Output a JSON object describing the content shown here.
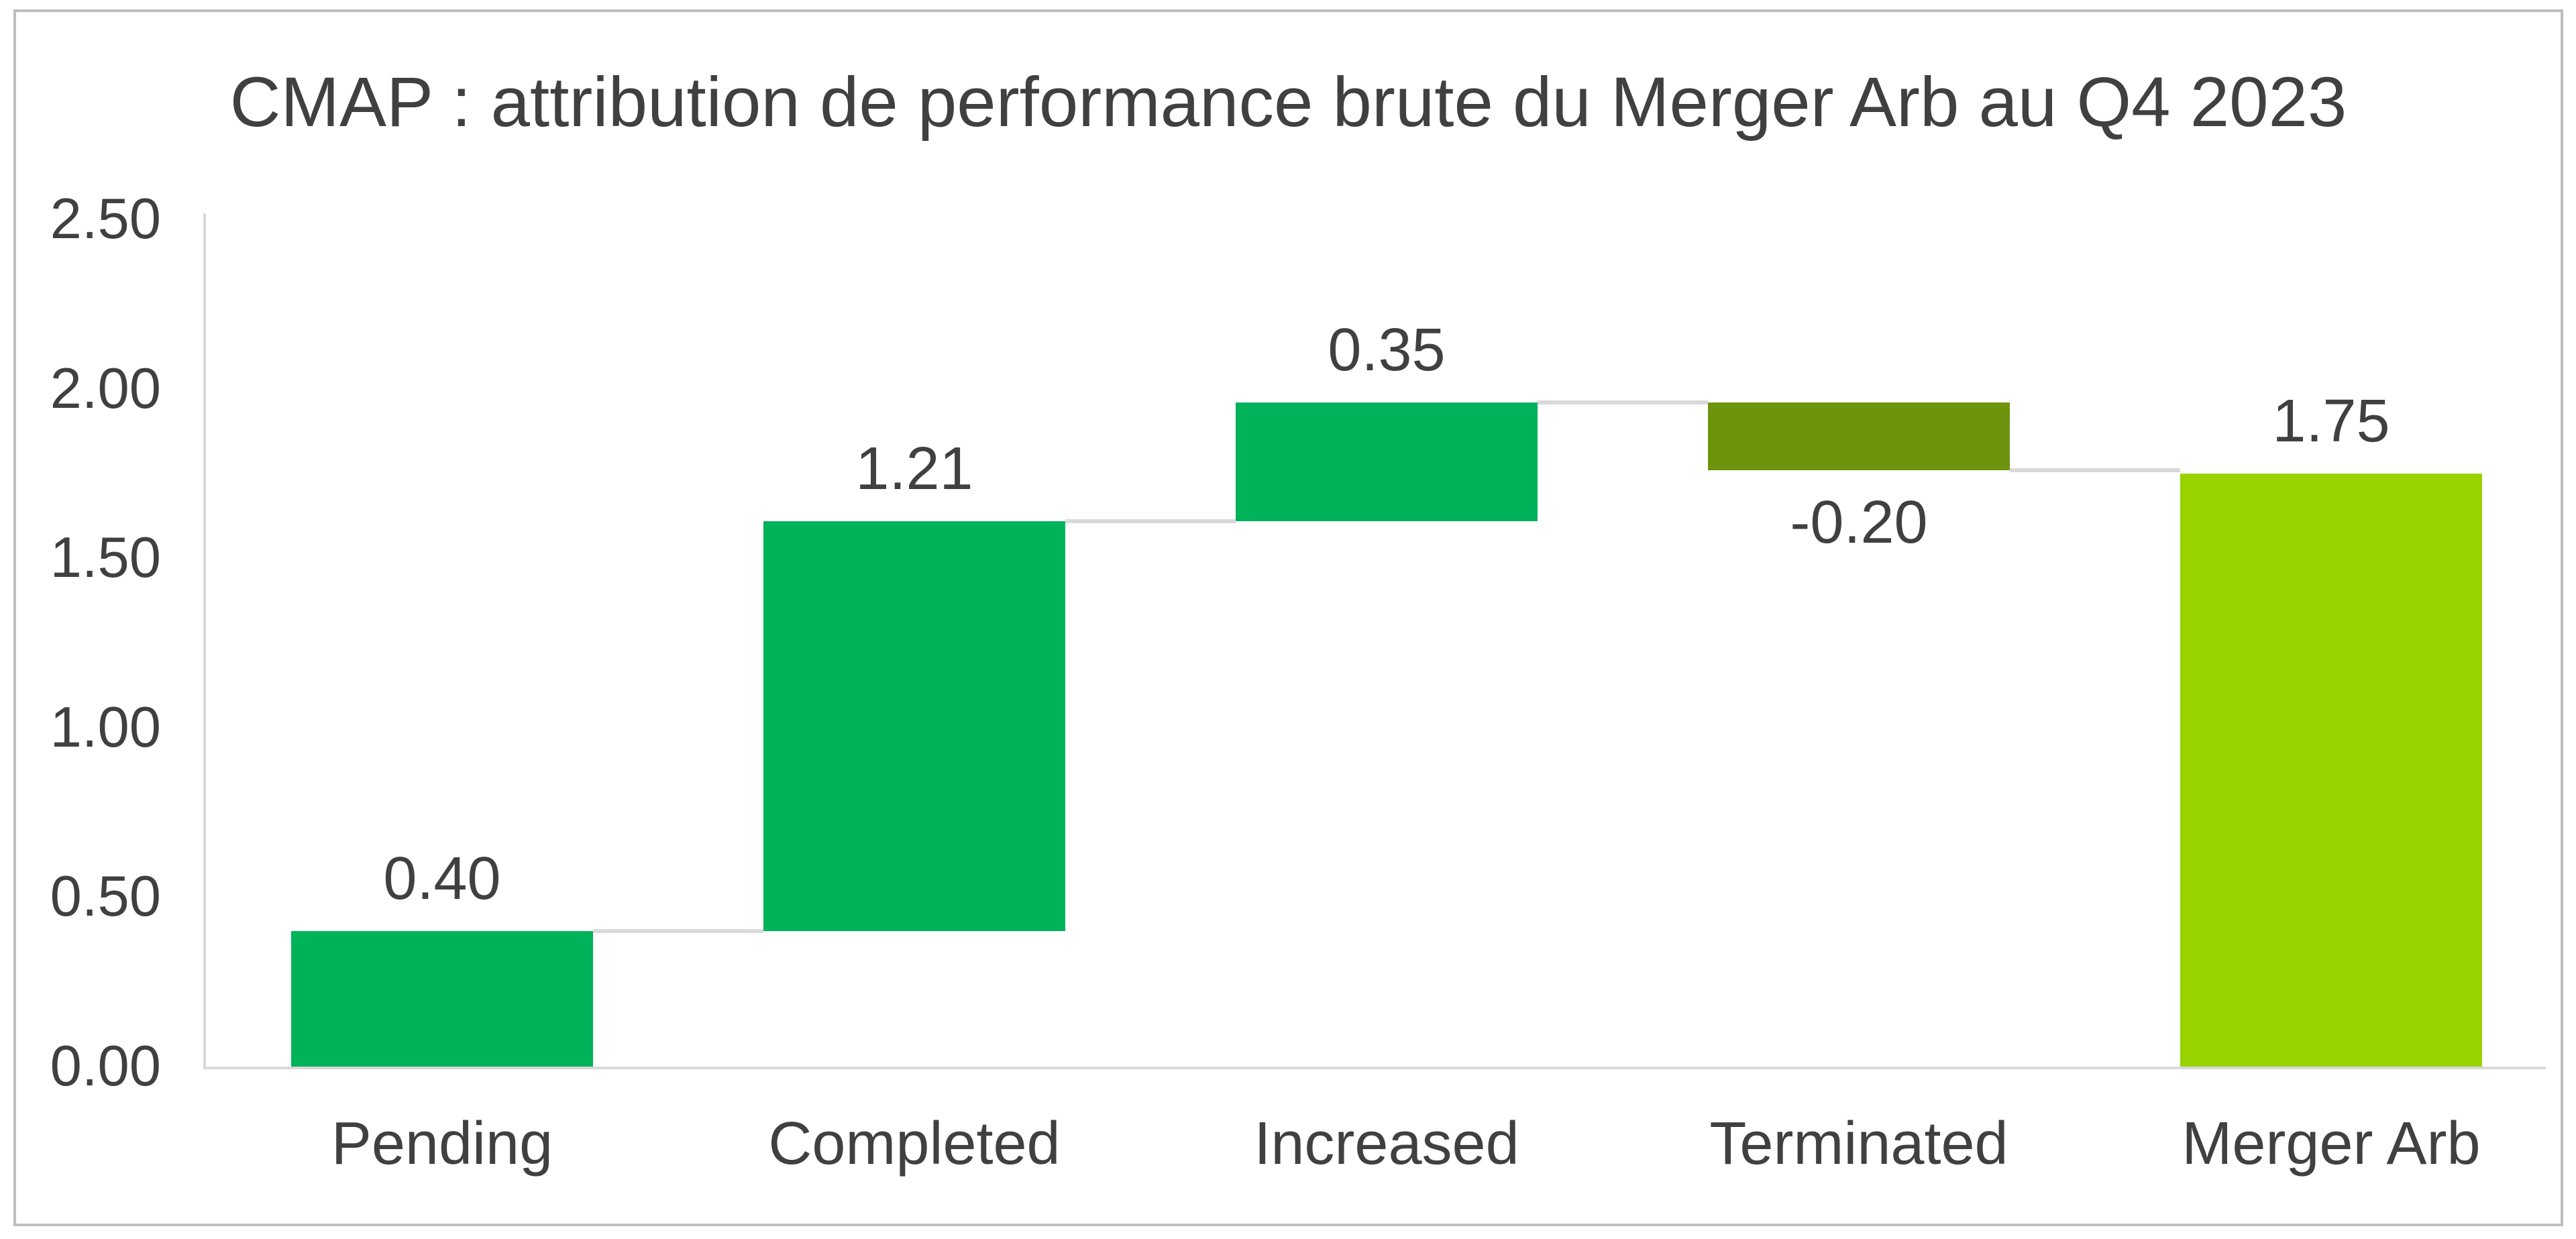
{
  "chart_data": {
    "type": "bar",
    "subtype": "waterfall",
    "title": "CMAP : attribution de performance brute du Merger Arb au Q4 2023",
    "categories": [
      "Pending",
      "Completed",
      "Increased",
      "Terminated",
      "Merger Arb"
    ],
    "values": [
      0.4,
      1.21,
      0.35,
      -0.2,
      1.75
    ],
    "data_labels": [
      "0.40",
      "1.21",
      "0.35",
      "-0.20",
      "1.75"
    ],
    "bar_roles": [
      "increase",
      "increase",
      "increase",
      "decrease",
      "total"
    ],
    "cumulative": {
      "start": [
        0,
        0.4,
        1.61,
        1.96,
        0
      ],
      "end": [
        0.4,
        1.61,
        1.96,
        1.76,
        1.75
      ]
    },
    "ylim": [
      0,
      2.5
    ],
    "yticks": [
      {
        "value": 0.0,
        "label": "0.00"
      },
      {
        "value": 0.5,
        "label": "0.50"
      },
      {
        "value": 1.0,
        "label": "1.00"
      },
      {
        "value": 1.5,
        "label": "1.50"
      },
      {
        "value": 2.0,
        "label": "2.00"
      },
      {
        "value": 2.5,
        "label": "2.50"
      }
    ],
    "xlabel": "",
    "ylabel": "",
    "grid": false,
    "legend": "none",
    "colors": {
      "increase": "#00b259",
      "decrease": "#6e930d",
      "total": "#98d200",
      "connector": "#d9d9d9",
      "axis": "#d9d9d9",
      "text": "#404040",
      "border": "#bfbfbf",
      "background": "#ffffff"
    }
  }
}
